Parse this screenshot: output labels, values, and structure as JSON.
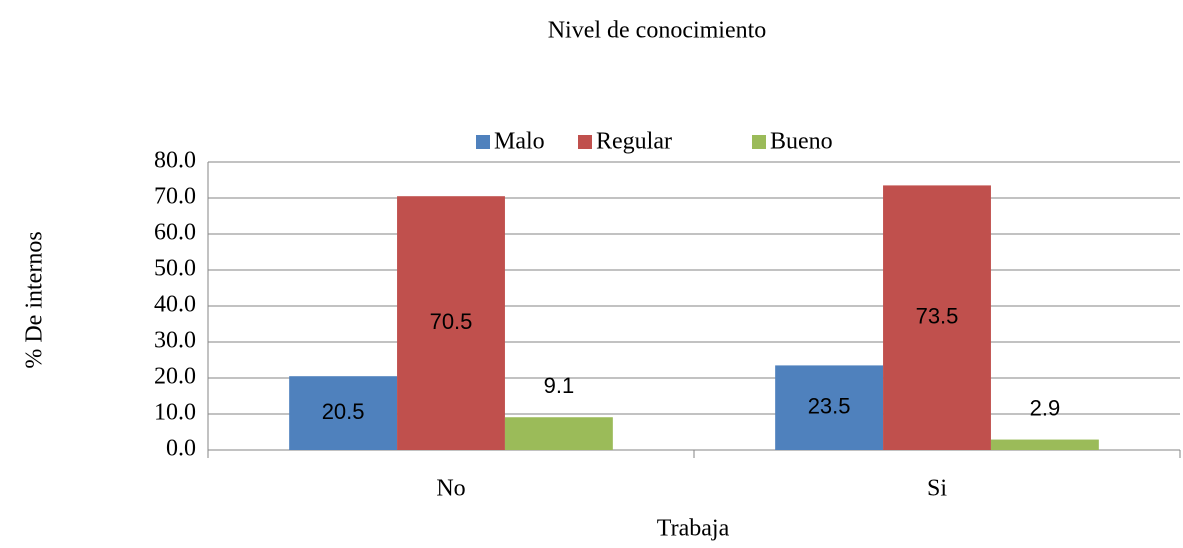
{
  "chart_data": {
    "type": "bar",
    "title": "Nivel de conocimiento",
    "x_label": "Trabaja",
    "y_label": "% De internos",
    "categories": [
      "No",
      "Si"
    ],
    "series": [
      {
        "name": "Malo",
        "color": "#4f81bd",
        "values": [
          20.5,
          23.5
        ]
      },
      {
        "name": "Regular",
        "color": "#c0504d",
        "values": [
          70.5,
          73.5
        ]
      },
      {
        "name": "Bueno",
        "color": "#9bbb59",
        "values": [
          9.1,
          2.9
        ]
      }
    ],
    "ylim": [
      0,
      80
    ],
    "yticks": [
      {
        "value": 0,
        "label": "0.0"
      },
      {
        "value": 10,
        "label": "10.0"
      },
      {
        "value": 20,
        "label": "20.0"
      },
      {
        "value": 30,
        "label": "30.0"
      },
      {
        "value": 40,
        "label": "40.0"
      },
      {
        "value": 50,
        "label": "50.0"
      },
      {
        "value": 60,
        "label": "60.0"
      },
      {
        "value": 70,
        "label": "70.0"
      },
      {
        "value": 80,
        "label": "80.0"
      }
    ],
    "grid": true,
    "legend": "top",
    "data_labels": true
  }
}
